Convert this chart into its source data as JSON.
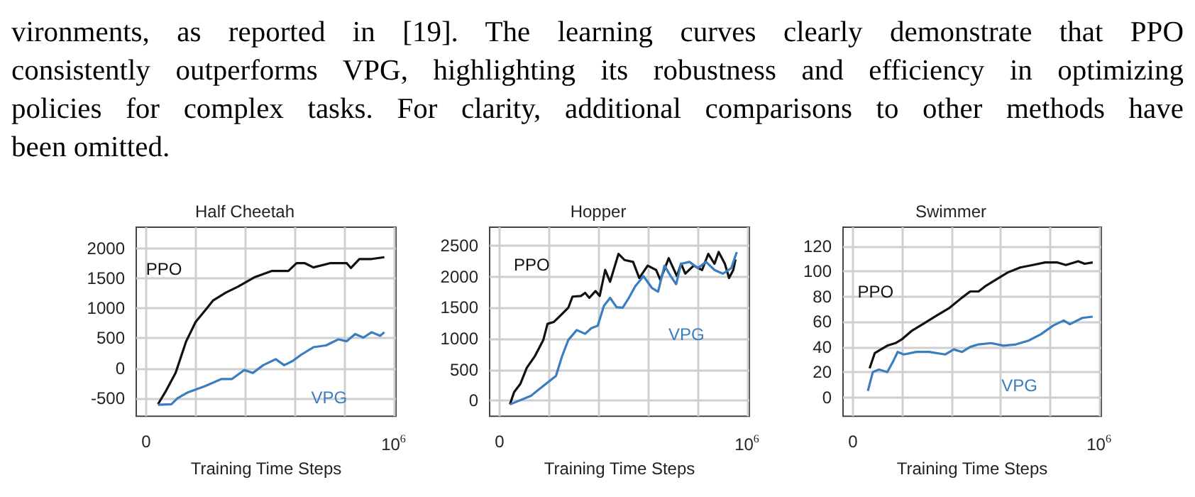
{
  "chart_data": [
    {
      "type": "other",
      "annotations": [
        "vironments, as reported in [19].  The learning curves clearly demonstrate that PPO",
        "consistently outperforms VPG, highlighting its robustness and efficiency in optimizing",
        "policies for complex tasks.  For clarity, additional comparisons to other methods have",
        "been omitted."
      ]
    },
    {
      "type": "line",
      "title": "Half Cheetah",
      "xlabel": "Training Time Steps",
      "xlim": [
        0,
        1000000
      ],
      "xticks": [
        {
          "value": 0,
          "label": "0"
        },
        {
          "value": 200000,
          "label": null
        },
        {
          "value": 400000,
          "label": null
        },
        {
          "value": 600000,
          "label": null
        },
        {
          "value": 800000,
          "label": null
        },
        {
          "value": 1000000,
          "label": "10$^{6}$"
        }
      ],
      "ylim": [
        -800,
        2350
      ],
      "yticks": [
        -500,
        0,
        500,
        1000,
        1500,
        2000
      ],
      "grid": true,
      "legend": false,
      "series": [
        {
          "name": "PPO",
          "color": "#111111",
          "x": [
            48000,
            77000,
            119000,
            161000,
            200000,
            246000,
            271000,
            322000,
            372000,
            440000,
            507000,
            575000,
            608000,
            642000,
            676000,
            743000,
            811000,
            828000,
            862000,
            912000,
            963000
          ],
          "values": [
            -600,
            -400,
            -80,
            440,
            770,
            1000,
            1130,
            1260,
            1360,
            1520,
            1620,
            1620,
            1750,
            1750,
            1680,
            1750,
            1750,
            1670,
            1820,
            1820,
            1850
          ]
        },
        {
          "name": "VPG",
          "color": "#3a7ebf",
          "x": [
            48000,
            102000,
            127000,
            170000,
            237000,
            305000,
            347000,
            397000,
            431000,
            473000,
            524000,
            558000,
            592000,
            625000,
            676000,
            727000,
            777000,
            811000,
            845000,
            878000,
            912000,
            946000,
            963000
          ],
          "values": [
            -610,
            -600,
            -500,
            -400,
            -300,
            -180,
            -180,
            -30,
            -80,
            50,
            150,
            50,
            120,
            220,
            350,
            380,
            480,
            450,
            570,
            510,
            600,
            540,
            600
          ]
        }
      ]
    },
    {
      "type": "line",
      "title": "Hopper",
      "xlabel": "Training Time Steps",
      "xlim": [
        0,
        1000000
      ],
      "xticks": [
        {
          "value": 0,
          "label": "0"
        },
        {
          "value": 200000,
          "label": null
        },
        {
          "value": 400000,
          "label": null
        },
        {
          "value": 600000,
          "label": null
        },
        {
          "value": 800000,
          "label": null
        },
        {
          "value": 1000000,
          "label": "10$^{6}$"
        }
      ],
      "ylim": [
        -250,
        2800
      ],
      "yticks": [
        0,
        500,
        1000,
        1500,
        2000,
        2500
      ],
      "grid": true,
      "legend": false,
      "series": [
        {
          "name": "PPO",
          "color": "#111111",
          "x": [
            42000,
            59000,
            84000,
            110000,
            143000,
            177000,
            194000,
            219000,
            245000,
            278000,
            295000,
            329000,
            346000,
            363000,
            388000,
            405000,
            427000,
            447000,
            481000,
            506000,
            540000,
            565000,
            599000,
            633000,
            650000,
            684000,
            717000,
            734000,
            751000,
            785000,
            819000,
            844000,
            869000,
            886000,
            911000,
            928000,
            945000,
            954000
          ],
          "values": [
            -60,
            140,
            270,
            530,
            720,
            980,
            1240,
            1270,
            1370,
            1500,
            1680,
            1690,
            1740,
            1660,
            1770,
            1690,
            2110,
            1920,
            2370,
            2270,
            2240,
            1980,
            2180,
            2110,
            1950,
            2300,
            2010,
            2210,
            2050,
            2180,
            2110,
            2370,
            2210,
            2400,
            2210,
            1980,
            2110,
            2280
          ]
        },
        {
          "name": "VPG",
          "color": "#3a7ebf",
          "x": [
            42000,
            127000,
            177000,
            228000,
            253000,
            278000,
            312000,
            346000,
            371000,
            397000,
            422000,
            447000,
            473000,
            498000,
            523000,
            549000,
            582000,
            616000,
            641000,
            667000,
            692000,
            714000,
            734000,
            768000,
            802000,
            835000,
            869000,
            903000,
            937000,
            959000
          ],
          "values": [
            -60,
            80,
            240,
            400,
            720,
            980,
            1140,
            1080,
            1170,
            1210,
            1530,
            1660,
            1510,
            1500,
            1660,
            1850,
            2010,
            1820,
            1760,
            2180,
            2010,
            1880,
            2210,
            2240,
            2140,
            2240,
            2110,
            2050,
            2140,
            2400
          ]
        }
      ]
    },
    {
      "type": "line",
      "title": "Swimmer",
      "xlabel": "Training Time Steps",
      "xlim": [
        0,
        1000000
      ],
      "xticks": [
        {
          "value": 0,
          "label": "0"
        },
        {
          "value": 200000,
          "label": null
        },
        {
          "value": 400000,
          "label": null
        },
        {
          "value": 600000,
          "label": null
        },
        {
          "value": 800000,
          "label": null
        },
        {
          "value": 1000000,
          "label": "10$^{6}$"
        }
      ],
      "ylim": [
        -15,
        135
      ],
      "yticks": [
        0,
        20,
        40,
        60,
        80,
        100,
        120
      ],
      "grid": true,
      "legend": false,
      "series": [
        {
          "name": "PPO",
          "color": "#111111",
          "x": [
            68000,
            89000,
            114000,
            140000,
            173000,
            199000,
            241000,
            292000,
            342000,
            393000,
            443000,
            477000,
            511000,
            537000,
            578000,
            629000,
            680000,
            731000,
            781000,
            832000,
            866000,
            916000,
            942000,
            975000
          ],
          "values": [
            23,
            35,
            38,
            41,
            43,
            46,
            53,
            59,
            65,
            71,
            79,
            84,
            84,
            88,
            93,
            99,
            103,
            105,
            107,
            107,
            105,
            108,
            106,
            107
          ]
        },
        {
          "name": "VPG",
          "color": "#3a7ebf",
          "x": [
            61000,
            81000,
            106000,
            140000,
            165000,
            182000,
            207000,
            258000,
            309000,
            376000,
            410000,
            444000,
            477000,
            511000,
            562000,
            613000,
            663000,
            714000,
            764000,
            815000,
            857000,
            882000,
            933000,
            975000
          ],
          "values": [
            5,
            20,
            22,
            20,
            29,
            36,
            34,
            36,
            36,
            34,
            38,
            36,
            40,
            42,
            43,
            41,
            42,
            45,
            50,
            57,
            61,
            58,
            63,
            64
          ]
        }
      ]
    }
  ]
}
